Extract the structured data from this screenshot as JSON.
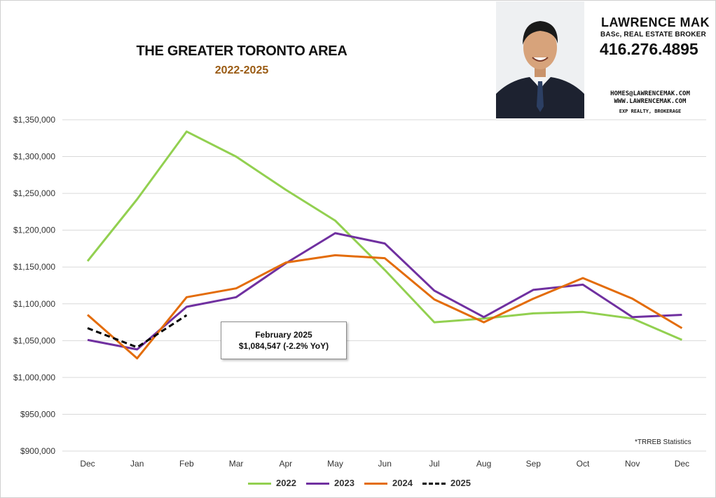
{
  "header": {
    "title": "THE GREATER TORONTO AREA",
    "subtitle": "2022-2025"
  },
  "agent": {
    "name": "LAWRENCE MAK",
    "credentials": "BASc, REAL ESTATE BROKER",
    "phone": "416.276.4895",
    "email": "HOMES@LAWRENCEMAK.COM",
    "website": "WWW.LAWRENCEMAK.COM",
    "brokerage": "EXP REALTY, BROKERAGE"
  },
  "callout": {
    "line1": "February 2025",
    "line2": "$1,084,547 (-2.2% YoY)"
  },
  "source_note": "*TRREB Statistics",
  "colors": {
    "series_2022": "#92d050",
    "series_2023": "#7030a0",
    "series_2024": "#e36c09",
    "series_2025": "#000000",
    "gridline": "#d9d9d9"
  },
  "chart_data": {
    "type": "line",
    "categories": [
      "Dec",
      "Jan",
      "Feb",
      "Mar",
      "Apr",
      "May",
      "Jun",
      "Jul",
      "Aug",
      "Sep",
      "Oct",
      "Nov",
      "Dec"
    ],
    "ylim": [
      900000,
      1350000
    ],
    "y_ticks": [
      900000,
      950000,
      1000000,
      1050000,
      1100000,
      1150000,
      1200000,
      1250000,
      1300000,
      1350000
    ],
    "y_tick_labels": [
      "$900,000",
      "$950,000",
      "$1,000,000",
      "$1,050,000",
      "$1,100,000",
      "$1,150,000",
      "$1,200,000",
      "$1,250,000",
      "$1,300,000",
      "$1,350,000"
    ],
    "grid": true,
    "legend_position": "bottom",
    "series": [
      {
        "name": "2022",
        "dash": false,
        "values": [
          1158000,
          1242000,
          1334000,
          1300000,
          1255000,
          1213000,
          1146000,
          1075000,
          1080000,
          1087000,
          1089000,
          1080000,
          1051000
        ]
      },
      {
        "name": "2023",
        "dash": false,
        "values": [
          1051000,
          1038000,
          1096000,
          1109000,
          1155000,
          1196000,
          1182000,
          1118000,
          1082000,
          1119000,
          1126000,
          1082000,
          1085000
        ]
      },
      {
        "name": "2024",
        "dash": false,
        "values": [
          1085000,
          1026000,
          1109000,
          1121000,
          1156000,
          1166000,
          1162000,
          1106000,
          1075000,
          1107000,
          1135000,
          1107000,
          1067000
        ]
      },
      {
        "name": "2025",
        "dash": true,
        "values": [
          1067000,
          1041000,
          1084547,
          null,
          null,
          null,
          null,
          null,
          null,
          null,
          null,
          null,
          null
        ]
      }
    ]
  }
}
